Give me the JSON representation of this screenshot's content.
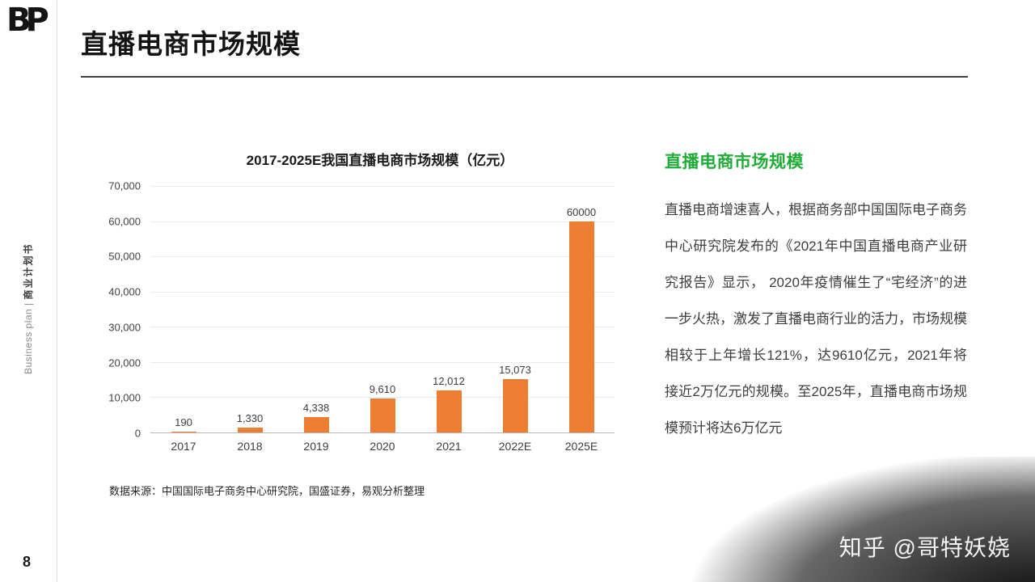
{
  "slide": {
    "logo_text": "BP",
    "title": "直播电商市场规模",
    "sidebar_en": "Business plan",
    "sidebar_sep": " | ",
    "sidebar_cn": "商业计划书",
    "page_number": "8",
    "watermark": "知乎 @哥特妖娆"
  },
  "right_panel": {
    "heading": "直播电商市场规模",
    "body": "直播电商增速喜人，根据商务部中国国际电子商务中心研究院发布的《2021年中国直播电商产业研究报告》显示， 2020年疫情催生了“宅经济”的进一步火热，激发了直播电商行业的活力，市场规模相较于上年增长121%，达9610亿元，2021年将接近2万亿元的规模。至2025年，直播电商市场规模预计将达6万亿元"
  },
  "chart_data": {
    "type": "bar",
    "title": "2017-2025E我国直播电商市场规模（亿元）",
    "categories": [
      "2017",
      "2018",
      "2019",
      "2020",
      "2021",
      "2022E",
      "2025E"
    ],
    "values": [
      190,
      1330,
      4338,
      9610,
      12012,
      15073,
      60000
    ],
    "value_labels": [
      "190",
      "1,330",
      "4,338",
      "9,610",
      "12,012",
      "15,073",
      "60000"
    ],
    "ylim": [
      0,
      70000
    ],
    "yticks": [
      "70,000",
      "60,000",
      "50,000",
      "40,000",
      "30,000",
      "20,000",
      "10,000",
      "0"
    ],
    "bar_color": "#ed7d31",
    "grid": true,
    "legend": "none",
    "source": "数据来源：中国国际电子商务中心研究院，国盛证券，易观分析整理"
  },
  "colors": {
    "accent_green": "#21ac38",
    "bar_orange": "#ed7d31"
  }
}
